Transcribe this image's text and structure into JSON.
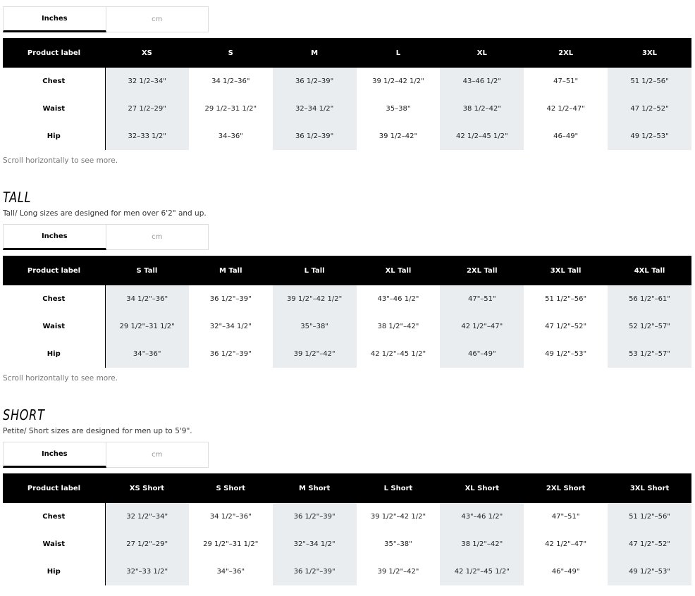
{
  "sections": [
    {
      "title": "",
      "description": "",
      "units": {
        "inches": "Inches",
        "cm": "cm"
      },
      "note": "Scroll horizontally to see more.",
      "header": [
        "Product label",
        "XS",
        "S",
        "M",
        "L",
        "XL",
        "2XL",
        "3XL"
      ],
      "rows": [
        [
          "Chest",
          "32 1/2–34\"",
          "34 1/2–36\"",
          "36 1/2–39\"",
          "39 1/2–42 1/2\"",
          "43–46 1/2\"",
          "47–51\"",
          "51 1/2–56\""
        ],
        [
          "Waist",
          "27 1/2–29\"",
          "29 1/2–31 1/2\"",
          "32–34 1/2\"",
          "35–38\"",
          "38 1/2–42\"",
          "42 1/2–47\"",
          "47 1/2–52\""
        ],
        [
          "Hip",
          "32–33 1/2\"",
          "34–36\"",
          "36 1/2–39\"",
          "39 1/2–42\"",
          "42 1/2–45 1/2\"",
          "46–49\"",
          "49 1/2–53\""
        ]
      ]
    },
    {
      "title": "TALL",
      "description": "Tall/ Long sizes are designed for men over 6'2\" and up.",
      "units": {
        "inches": "Inches",
        "cm": "cm"
      },
      "note": "Scroll horizontally to see more.",
      "header": [
        "Product label",
        "S Tall",
        "M Tall",
        "L Tall",
        "XL Tall",
        "2XL Tall",
        "3XL Tall",
        "4XL Tall"
      ],
      "rows": [
        [
          "Chest",
          "34 1/2\"–36\"",
          "36 1/2\"–39\"",
          "39 1/2\"–42 1/2\"",
          "43\"–46 1/2\"",
          "47\"–51\"",
          "51 1/2\"–56\"",
          "56 1/2\"–61\""
        ],
        [
          "Waist",
          "29 1/2\"–31 1/2\"",
          "32\"–34 1/2\"",
          "35\"–38\"",
          "38 1/2\"–42\"",
          "42 1/2\"–47\"",
          "47 1/2\"–52\"",
          "52 1/2\"–57\""
        ],
        [
          "Hip",
          "34\"–36\"",
          "36 1/2\"–39\"",
          "39 1/2\"–42\"",
          "42 1/2\"–45 1/2\"",
          "46\"–49\"",
          "49 1/2\"–53\"",
          "53 1/2\"–57\""
        ]
      ]
    },
    {
      "title": "SHORT",
      "description": "Petite/ Short sizes are designed for men up to 5'9\".",
      "units": {
        "inches": "Inches",
        "cm": "cm"
      },
      "note": "",
      "header": [
        "Product label",
        "XS Short",
        "S Short",
        "M Short",
        "L Short",
        "XL Short",
        "2XL Short",
        "3XL Short"
      ],
      "rows": [
        [
          "Chest",
          "32 1/2\"–34\"",
          "34 1/2\"–36\"",
          "36 1/2\"–39\"",
          "39 1/2\"–42 1/2\"",
          "43\"–46 1/2\"",
          "47\"–51\"",
          "51 1/2\"–56\""
        ],
        [
          "Waist",
          "27 1/2\"–29\"",
          "29 1/2\"–31 1/2\"",
          "32\"–34 1/2\"",
          "35\"–38\"",
          "38 1/2\"–42\"",
          "42 1/2\"–47\"",
          "47 1/2\"–52\""
        ],
        [
          "Hip",
          "32\"–33 1/2\"",
          "34\"–36\"",
          "36 1/2\"–39\"",
          "39 1/2\"–42\"",
          "42 1/2\"–45 1/2\"",
          "46\"–49\"",
          "49 1/2\"–53\""
        ]
      ]
    }
  ]
}
